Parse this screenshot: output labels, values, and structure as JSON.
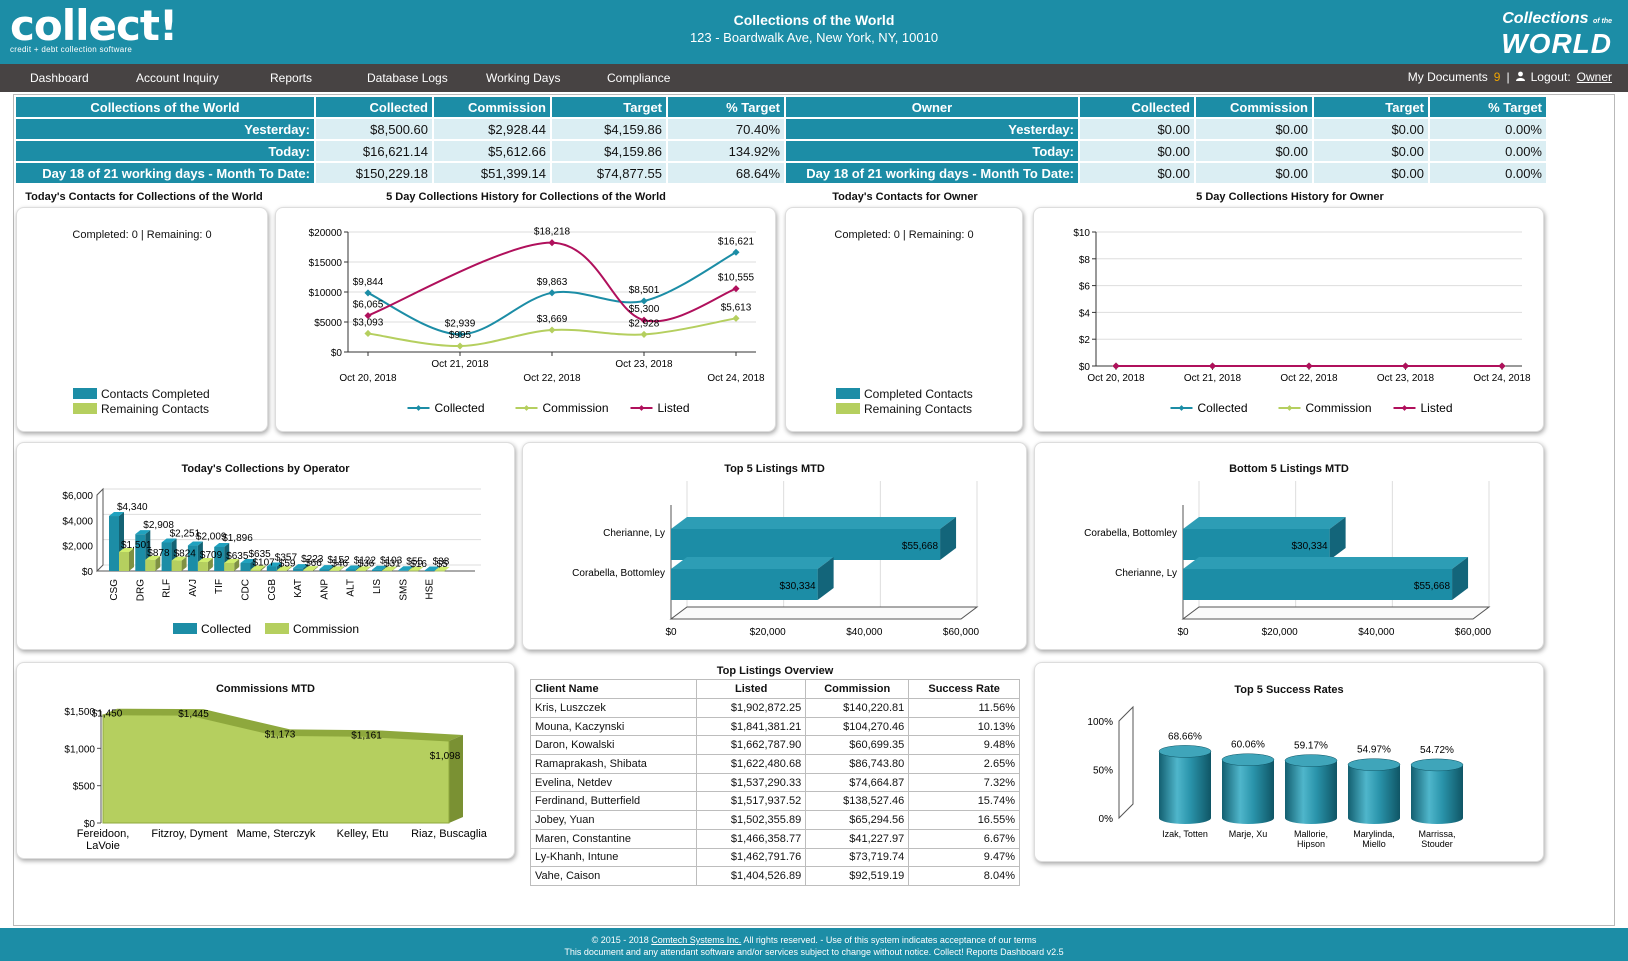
{
  "header": {
    "logo_text": "collect!",
    "logo_tagline": "credit + debt collection software",
    "company_title": "Collections of the World",
    "company_address": "123 - Boardwalk Ave, New York, NY, 10010",
    "right_logo_line1": "Collections",
    "right_logo_line1b": "of the",
    "right_logo_line2": "WORLD"
  },
  "nav": {
    "items": [
      "Dashboard",
      "Account Inquiry",
      "Reports",
      "Database Logs",
      "Working Days",
      "Compliance"
    ],
    "my_documents": "My Documents",
    "doc_count": "9",
    "separator": "|",
    "logout_label": "Logout:",
    "user": "Owner"
  },
  "summary_left": {
    "headers": [
      "Collections of the World",
      "Collected",
      "Commission",
      "Target",
      "% Target"
    ],
    "rows": [
      {
        "label": "Yesterday:",
        "values": [
          "$8,500.60",
          "$2,928.44",
          "$4,159.86",
          "70.40%"
        ]
      },
      {
        "label": "Today:",
        "values": [
          "$16,621.14",
          "$5,612.66",
          "$4,159.86",
          "134.92%"
        ]
      },
      {
        "label": "Day 18 of 21 working days - Month To Date:",
        "values": [
          "$150,229.18",
          "$51,399.14",
          "$74,877.55",
          "68.64%"
        ]
      }
    ]
  },
  "summary_right": {
    "headers": [
      "Owner",
      "Collected",
      "Commission",
      "Target",
      "% Target"
    ],
    "rows": [
      {
        "label": "Yesterday:",
        "values": [
          "$0.00",
          "$0.00",
          "$0.00",
          "0.00%"
        ]
      },
      {
        "label": "Today:",
        "values": [
          "$0.00",
          "$0.00",
          "$0.00",
          "0.00%"
        ]
      },
      {
        "label": "Day 18 of 21 working days - Month To Date:",
        "values": [
          "$0.00",
          "$0.00",
          "$0.00",
          "0.00%"
        ]
      }
    ]
  },
  "contacts_world": {
    "title": "Today's Contacts for Collections of the World",
    "status": "Completed: 0 | Remaining: 0",
    "legend": [
      "Contacts Completed",
      "Remaining Contacts"
    ]
  },
  "contacts_owner": {
    "title": "Today's Contacts for Owner",
    "status": "Completed: 0 | Remaining: 0",
    "legend": [
      "Completed Contacts",
      "Remaining Contacts"
    ]
  },
  "colors": {
    "teal": "#1c8da6",
    "green": "#b5cf5f",
    "magenta": "#b0105c",
    "nav": "#474343"
  },
  "footer": {
    "line1_a": "© 2015 - 2018",
    "line1_link": "Comtech Systems Inc.",
    "line1_b": "All rights reserved. - Use of this system indicates acceptance of our terms",
    "line2": "This document and any attendant software and/or services subject to change without notice. Collect! Reports Dashboard v2.5"
  },
  "chart_data": [
    {
      "id": "history_world",
      "type": "line",
      "title": "5 Day Collections History for Collections of the World",
      "categories": [
        "Oct 20, 2018",
        "Oct 21, 2018",
        "Oct 22, 2018",
        "Oct 23, 2018",
        "Oct 24, 2018"
      ],
      "series": [
        {
          "name": "Collected",
          "values": [
            9844,
            2939,
            9863,
            8501,
            16621
          ],
          "labels": [
            "$9,844",
            "$2,939",
            "$9,863",
            "$8,501",
            "$16,621"
          ],
          "color": "#1c8da6"
        },
        {
          "name": "Commission",
          "values": [
            3093,
            995,
            3669,
            2928,
            5613
          ],
          "labels": [
            "$3,093",
            "$995",
            "$3,669",
            "$2,928",
            "$5,613"
          ],
          "color": "#b5cf5f"
        },
        {
          "name": "Listed",
          "values": [
            6065,
            null,
            18218,
            5300,
            10555
          ],
          "labels": [
            "$6,065",
            "",
            "$18,218",
            "$5,300",
            "$10,555"
          ],
          "color": "#b0105c"
        }
      ],
      "yticks": [
        "$0",
        "$5000",
        "$10000",
        "$15000",
        "$20000"
      ],
      "ylim": [
        0,
        20000
      ]
    },
    {
      "id": "history_owner",
      "type": "line",
      "title": "5 Day Collections History for Owner",
      "categories": [
        "Oct 20, 2018",
        "Oct 21, 2018",
        "Oct 22, 2018",
        "Oct 23, 2018",
        "Oct 24, 2018"
      ],
      "series": [
        {
          "name": "Collected",
          "values": [
            0,
            0,
            0,
            0,
            0
          ],
          "color": "#1c8da6"
        },
        {
          "name": "Commission",
          "values": [
            0,
            0,
            0,
            0,
            0
          ],
          "color": "#b5cf5f"
        },
        {
          "name": "Listed",
          "values": [
            0,
            0,
            0,
            0,
            0
          ],
          "color": "#b0105c"
        }
      ],
      "yticks": [
        "$0",
        "$2",
        "$4",
        "$6",
        "$8",
        "$10"
      ],
      "ylim": [
        0,
        10
      ]
    },
    {
      "id": "by_operator",
      "type": "bar",
      "title": "Today's Collections by Operator",
      "categories": [
        "CSG",
        "DRG",
        "RLF",
        "AVJ",
        "TIF",
        "CDC",
        "CGB",
        "KAT",
        "ANP",
        "ALT",
        "LIS",
        "SMS",
        "HSE"
      ],
      "series": [
        {
          "name": "Collected",
          "values": [
            4340,
            2908,
            2251,
            2009,
            1896,
            635,
            357,
            223,
            152,
            122,
            103,
            55,
            38
          ],
          "labels": [
            "$4,340",
            "$2,908",
            "$2,251",
            "$2,009",
            "$1,896",
            "$635",
            "$357",
            "$223",
            "$152",
            "$122",
            "$103",
            "$55",
            "$38"
          ],
          "color": "#1c8da6"
        },
        {
          "name": "Commission",
          "values": [
            1501,
            878,
            824,
            709,
            635,
            107,
            59,
            66,
            46,
            36,
            31,
            16,
            5
          ],
          "labels": [
            "$1,501",
            "$878",
            "$824",
            "$709",
            "$635",
            "$107",
            "$59",
            "$66",
            "$46",
            "$36",
            "$31",
            "$16",
            "$5"
          ],
          "color": "#b5cf5f"
        }
      ],
      "yticks": [
        "$0",
        "$2,000",
        "$4,000",
        "$6,000"
      ],
      "ylim": [
        0,
        6000
      ]
    },
    {
      "id": "top5",
      "type": "bar",
      "title": "Top 5 Listings MTD",
      "categories": [
        "Cherianne, Ly",
        "Corabella, Bottomley"
      ],
      "values": [
        55668,
        30334
      ],
      "labels": [
        "$55,668",
        "$30,334"
      ],
      "xticks": [
        "$0",
        "$20,000",
        "$40,000",
        "$60,000"
      ],
      "xlim": [
        0,
        60000
      ]
    },
    {
      "id": "bottom5",
      "type": "bar",
      "title": "Bottom 5 Listings MTD",
      "categories": [
        "Corabella, Bottomley",
        "Cherianne, Ly"
      ],
      "values": [
        30334,
        55668
      ],
      "labels": [
        "$30,334",
        "$55,668"
      ],
      "xticks": [
        "$0",
        "$20,000",
        "$40,000",
        "$60,000"
      ],
      "xlim": [
        0,
        60000
      ]
    },
    {
      "id": "commissions_mtd",
      "type": "area",
      "title": "Commissions MTD",
      "categories": [
        "Fereidoon, LaVoie",
        "Fitzroy, Dyment",
        "Mame, Sterczyk",
        "Kelley, Etu",
        "Riaz, Buscaglia"
      ],
      "values": [
        1450,
        1445,
        1173,
        1161,
        1098
      ],
      "labels": [
        "$1,450",
        "$1,445",
        "$1,173",
        "$1,161",
        "$1,098"
      ],
      "yticks": [
        "$0",
        "$500",
        "$1,000",
        "$1,500"
      ],
      "ylim": [
        0,
        1500
      ]
    },
    {
      "id": "top_listings",
      "type": "table",
      "title": "Top Listings Overview",
      "columns": [
        "Client Name",
        "Listed",
        "Commission",
        "Success Rate"
      ],
      "rows": [
        [
          "Kris, Luszczek",
          "$1,902,872.25",
          "$140,220.81",
          "11.56%"
        ],
        [
          "Mouna, Kaczynski",
          "$1,841,381.21",
          "$104,270.46",
          "10.13%"
        ],
        [
          "Daron, Kowalski",
          "$1,662,787.90",
          "$60,699.35",
          "9.48%"
        ],
        [
          "Ramaprakash, Shibata",
          "$1,622,480.68",
          "$86,743.80",
          "2.65%"
        ],
        [
          "Evelina, Netdev",
          "$1,537,290.33",
          "$74,664.87",
          "7.32%"
        ],
        [
          "Ferdinand, Butterfield",
          "$1,517,937.52",
          "$138,527.46",
          "15.74%"
        ],
        [
          "Jobey, Yuan",
          "$1,502,355.89",
          "$65,294.56",
          "16.55%"
        ],
        [
          "Maren, Constantine",
          "$1,466,358.77",
          "$41,227.97",
          "6.67%"
        ],
        [
          "Ly-Khanh, Intune",
          "$1,462,791.76",
          "$73,719.74",
          "9.47%"
        ],
        [
          "Vahe, Caison",
          "$1,404,526.89",
          "$92,519.19",
          "8.04%"
        ]
      ]
    },
    {
      "id": "success_rates",
      "type": "bar",
      "title": "Top 5 Success Rates",
      "categories": [
        "Izak, Totten",
        "Marje, Xu",
        "Mallorie, Hipson",
        "Marylinda, Miello",
        "Marrissa, Stouder"
      ],
      "values": [
        68.66,
        60.06,
        59.17,
        54.97,
        54.72
      ],
      "labels": [
        "68.66%",
        "60.06%",
        "59.17%",
        "54.97%",
        "54.72%"
      ],
      "yticks": [
        "0%",
        "50%",
        "100%"
      ],
      "ylim": [
        0,
        100
      ]
    }
  ]
}
